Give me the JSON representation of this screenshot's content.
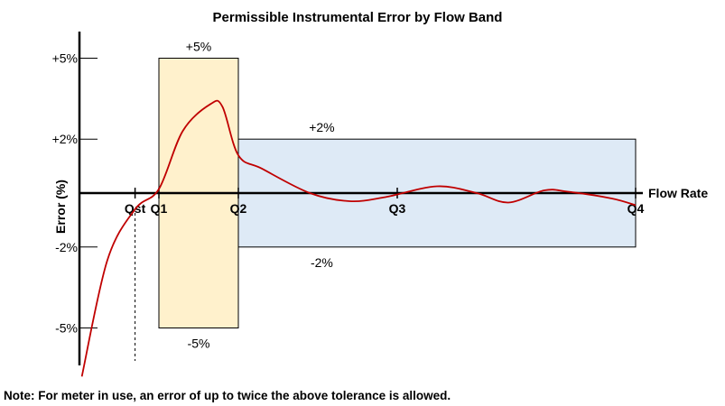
{
  "chart_data": {
    "type": "line",
    "title": "Permissible Instrumental Error by Flow Band",
    "xlabel": "Flow Rate",
    "ylabel": "Error (%)",
    "y_ticks": [
      "+5%",
      "+2%",
      "-2%",
      "-5%"
    ],
    "y_tick_values": [
      5,
      2,
      -2,
      -5
    ],
    "x_markers": [
      "Qst",
      "Q1",
      "Q2",
      "Q3",
      "Q4"
    ],
    "x_marker_values": [
      0.7,
      1.0,
      2.0,
      4.0,
      7.0
    ],
    "ylim": [
      -6.5,
      5.5
    ],
    "grid": false,
    "bands": [
      {
        "x_from": "Q1",
        "x_to": "Q2",
        "upper": 5,
        "lower": -5,
        "upper_label": "+5%",
        "lower_label": "-5%",
        "color": "#fff1cc",
        "edge": "#000000"
      },
      {
        "x_from": "Q2",
        "x_to": "Q4",
        "upper": 2,
        "lower": -2,
        "upper_label": "+2%",
        "lower_label": "-2%",
        "color": "#deeaf6",
        "edge": "#000000"
      }
    ],
    "series": [
      {
        "color": "#c00000",
        "points": [
          [
            0.03,
            -6.8
          ],
          [
            0.35,
            -2.5
          ],
          [
            0.7,
            -0.6
          ],
          [
            1.0,
            0.15
          ],
          [
            1.3,
            2.3
          ],
          [
            1.65,
            3.3
          ],
          [
            1.8,
            3.2
          ],
          [
            2.0,
            1.4
          ],
          [
            2.3,
            0.9
          ],
          [
            2.9,
            0.0
          ],
          [
            3.4,
            -0.3
          ],
          [
            3.85,
            -0.15
          ],
          [
            4.5,
            0.25
          ],
          [
            5.0,
            0.0
          ],
          [
            5.4,
            -0.35
          ],
          [
            5.85,
            0.1
          ],
          [
            6.15,
            0.05
          ],
          [
            6.7,
            -0.2
          ],
          [
            7.0,
            -0.45
          ]
        ]
      }
    ]
  },
  "note": "Note: For meter in use, an error of up to twice the above tolerance is allowed."
}
